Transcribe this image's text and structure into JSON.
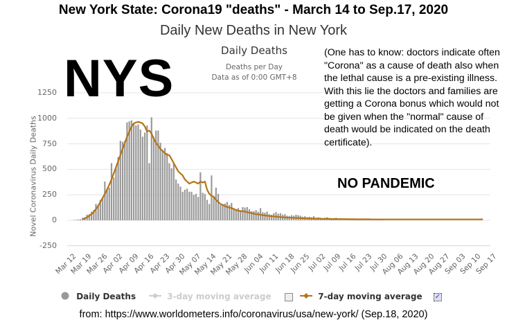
{
  "header": {
    "title": "New York State: Corona19 \"deaths\" - March 14 to Sep.17, 2020",
    "subtitle": "Daily New Deaths in New York"
  },
  "chart_header": {
    "title": "Daily Deaths",
    "subtitle_line1": "Deaths per Day",
    "subtitle_line2": "Data as of 0:00 GMT+8"
  },
  "overlay": {
    "big_label": "NYS",
    "note": "(One has to know: doctors indicate often \"Corona\" as a cause of death also when the lethal cause is a pre-existing illness. With this lie the doctors and families are getting a Corona bonus which would not be given when the \"normal\" cause of death would be indicated on the death certificate).",
    "stamp": "NO PANDEMIC"
  },
  "legend": {
    "items": [
      {
        "label": "Daily Deaths",
        "icon": "circle-icon",
        "color": "#999999",
        "enabled": true
      },
      {
        "label": "3-day moving average",
        "icon": "line-marker-icon",
        "color": "#cccccc",
        "enabled": false,
        "checkbox": false
      },
      {
        "label": "7-day moving average",
        "icon": "line-marker-icon",
        "color": "#b57413",
        "enabled": true,
        "checkbox": true
      }
    ]
  },
  "source": "from: https://www.worldometers.info/coronavirus/usa/new-york/  (Sep.18, 2020)",
  "colors": {
    "bars": "#999999",
    "avg7": "#b57413",
    "grid": "#e6e6e6",
    "axis_text": "#666666"
  },
  "chart_data": {
    "type": "bar",
    "title": "Daily Deaths",
    "subtitle": "Deaths per Day",
    "xlabel": "",
    "ylabel": "Novel Coronavirus Daily Deaths",
    "ylim": [
      -250,
      1250
    ],
    "yticks": [
      1250,
      1000,
      750,
      500,
      250,
      0,
      -250
    ],
    "grid": true,
    "legend_position": "bottom",
    "x_start": "Mar 12",
    "x_end": "Sep 17",
    "xtick_labels": [
      "Mar 12",
      "Mar 19",
      "Mar 26",
      "Apr 02",
      "Apr 09",
      "Apr 16",
      "Apr 23",
      "Apr 30",
      "May 07",
      "May 14",
      "May 21",
      "May 28",
      "Jun 04",
      "Jun 11",
      "Jun 18",
      "Jun 25",
      "Jul 02",
      "Jul 09",
      "Jul 16",
      "Jul 23",
      "Jul 30",
      "Aug 06",
      "Aug 13",
      "Aug 20",
      "Aug 27",
      "Sep 03",
      "Sep 10",
      "Sep 17"
    ],
    "series": [
      {
        "name": "Daily Deaths",
        "type": "bar",
        "start_day_offset": 2,
        "values": [
          3,
          5,
          8,
          10,
          25,
          30,
          55,
          60,
          85,
          100,
          160,
          150,
          200,
          220,
          380,
          310,
          320,
          560,
          420,
          520,
          620,
          780,
          770,
          780,
          960,
          970,
          980,
          950,
          930,
          940,
          890,
          820,
          860,
          930,
          560,
          1010,
          820,
          880,
          880,
          760,
          690,
          710,
          660,
          560,
          510,
          560,
          400,
          360,
          330,
          280,
          300,
          310,
          280,
          280,
          250,
          260,
          230,
          470,
          270,
          260,
          200,
          160,
          440,
          240,
          320,
          260,
          150,
          160,
          165,
          180,
          150,
          170,
          120,
          110,
          120,
          100,
          130,
          125,
          130,
          110,
          90,
          90,
          100,
          85,
          120,
          80,
          75,
          85,
          60,
          55,
          70,
          80,
          65,
          70,
          55,
          60,
          45,
          40,
          50,
          45,
          55,
          50,
          45,
          35,
          40,
          30,
          35,
          30,
          40,
          25,
          30,
          25,
          20,
          25,
          30,
          20,
          15,
          20,
          25,
          15,
          20,
          15,
          10,
          12,
          15,
          10,
          8,
          10,
          12,
          10,
          8,
          6,
          5,
          10,
          8,
          6,
          5,
          8,
          6,
          4
        ]
      },
      {
        "name": "7-day moving average",
        "type": "line",
        "start_day_offset": 6,
        "values": [
          10,
          20,
          30,
          45,
          60,
          80,
          110,
          140,
          180,
          220,
          260,
          300,
          350,
          400,
          460,
          520,
          580,
          640,
          700,
          760,
          820,
          870,
          920,
          950,
          960,
          965,
          960,
          950,
          920,
          870,
          880,
          850,
          800,
          760,
          730,
          700,
          680,
          660,
          640,
          640,
          600,
          560,
          520,
          480,
          460,
          440,
          400,
          380,
          360,
          370,
          380,
          370,
          360,
          380,
          370,
          380,
          300,
          260,
          240,
          230,
          200,
          180,
          160,
          150,
          140,
          130,
          125,
          120,
          110,
          100,
          95,
          90,
          90,
          85,
          80,
          75,
          70,
          65,
          60,
          58,
          55,
          50,
          48,
          45,
          42,
          40,
          38,
          36,
          34,
          32,
          30,
          28,
          27,
          26,
          25,
          24,
          23,
          22,
          21,
          20,
          20,
          19,
          18,
          17,
          17,
          16,
          16,
          15,
          15,
          14,
          14,
          14,
          13,
          13,
          13,
          12,
          12,
          12,
          12,
          11,
          11,
          11,
          11,
          10,
          10,
          10,
          10,
          10,
          10,
          10,
          9,
          9,
          9,
          9,
          9,
          9,
          9,
          9,
          9,
          9,
          9,
          9,
          9,
          9,
          9,
          9,
          9,
          9,
          9,
          9,
          9,
          9,
          9,
          9,
          9,
          9,
          9,
          9,
          9,
          9,
          9,
          9,
          9,
          9,
          9,
          9,
          9,
          9,
          9,
          9,
          9,
          9,
          9,
          9,
          9,
          9,
          9,
          9,
          9,
          9,
          10
        ]
      }
    ]
  }
}
